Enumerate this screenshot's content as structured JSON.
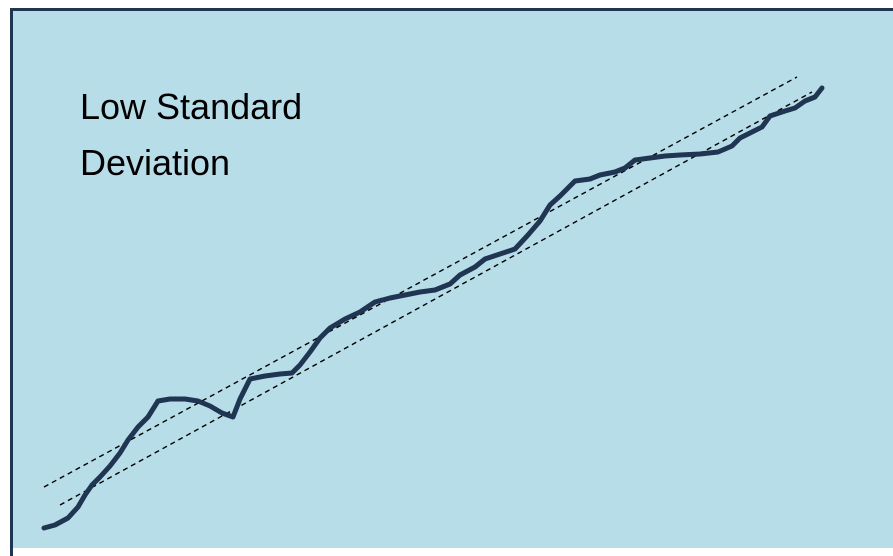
{
  "diagram": {
    "title_lines": [
      "Low Standard",
      "Deviation"
    ],
    "colors": {
      "panel": "#b7dde8",
      "border": "#1f3552",
      "data_line": "#1f3552",
      "band_line": "#000000"
    }
  }
}
